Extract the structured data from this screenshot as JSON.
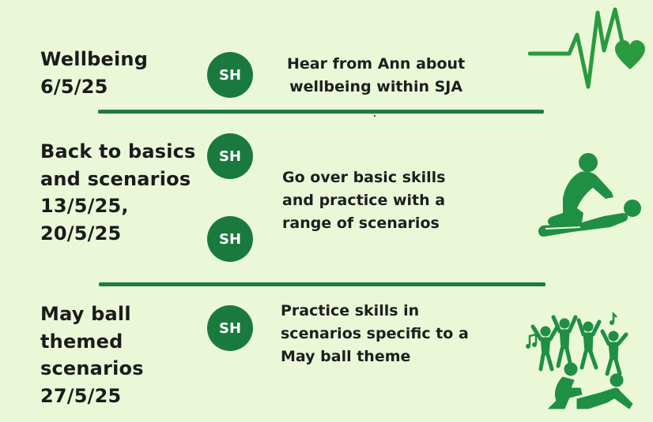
{
  "colors": {
    "background": "#eaf8d8",
    "accent_green": "#1a7a3e",
    "icon_green": "#2a9a3e",
    "text": "#1b1b1b"
  },
  "sessions": [
    {
      "title": "Wellbeing\n6/5/25",
      "badges": [
        "SH"
      ],
      "description": "Hear from Ann about\nwellbeing within SJA",
      "icon": "heartbeat-heart-icon"
    },
    {
      "title": "Back to basics\nand scenarios\n13/5/25,\n20/5/25",
      "badges": [
        "SH",
        "SH"
      ],
      "description": "Go over basic skills\nand  practice with a\nrange of scenarios",
      "icon": "cpr-icon"
    },
    {
      "title": "May ball\nthemed\nscenarios\n27/5/25",
      "badges": [
        "SH"
      ],
      "description": "Practice skills in\nscenarios specific to a\nMay ball theme",
      "icon": "dancing-crowd-first-aid-icon"
    }
  ]
}
